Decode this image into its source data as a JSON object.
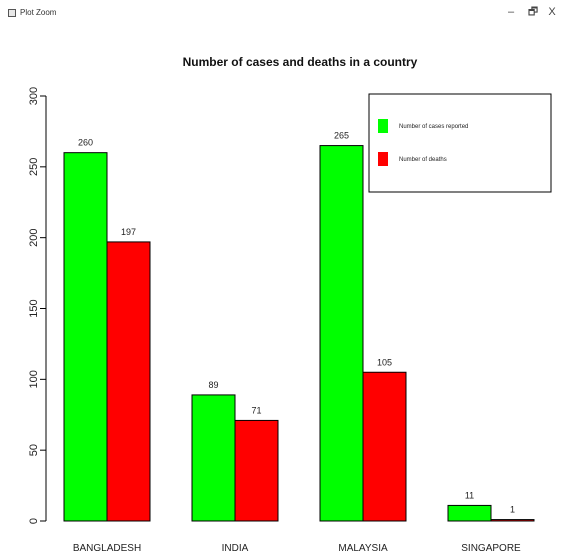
{
  "window": {
    "title": "Plot Zoom",
    "minimize_glyph": "–",
    "maximize_glyph": "🗗",
    "close_glyph": "X"
  },
  "chart_data": {
    "type": "bar",
    "title": "Number of cases and deaths in a country",
    "categories": [
      "BANGLADESH",
      "INDIA",
      "MALAYSIA",
      "SINGAPORE"
    ],
    "series": [
      {
        "name": "Number of cases reported",
        "values": [
          260,
          89,
          265,
          11
        ],
        "color": "#00ff00"
      },
      {
        "name": "Number of deaths",
        "values": [
          197,
          71,
          105,
          1
        ],
        "color": "#ff0000"
      }
    ],
    "ylim": [
      0,
      300
    ],
    "yticks": [
      0,
      50,
      100,
      150,
      200,
      250,
      300
    ],
    "xlabel": "",
    "ylabel": "",
    "grid": false,
    "legend_position": "top-right",
    "bar_border_color": "#000000",
    "axis_color": "#000000"
  }
}
